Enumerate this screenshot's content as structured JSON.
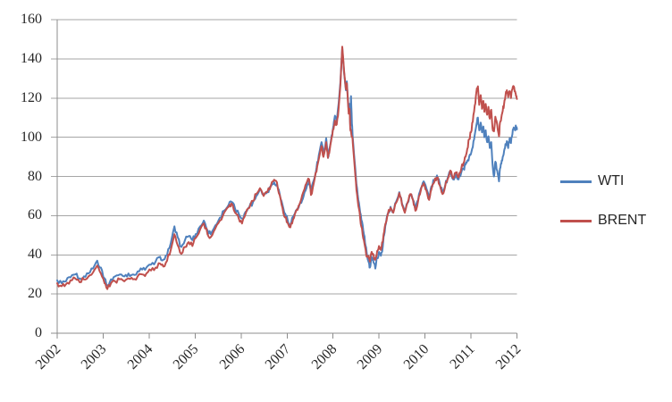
{
  "chart_data": {
    "type": "line",
    "title": "",
    "xlabel": "",
    "ylabel": "",
    "grid": true,
    "legend_position": "right",
    "colors": {
      "grid": "#a6a6a6",
      "axis": "#8c8c8c",
      "text": "#262626",
      "wti": "#4F81BD",
      "brent": "#C0504D"
    },
    "x_axis": {
      "ticks": [
        "2002",
        "2003",
        "2004",
        "2005",
        "2006",
        "2007",
        "2008",
        "2009",
        "2010",
        "2011",
        "2012"
      ],
      "range": [
        2002,
        2012
      ]
    },
    "y_axis": {
      "ticks": [
        "0",
        "20",
        "40",
        "60",
        "80",
        "100",
        "120",
        "140",
        "160"
      ],
      "tick_values": [
        0,
        20,
        40,
        60,
        80,
        100,
        120,
        140,
        160
      ],
      "range": [
        0,
        160
      ]
    },
    "series": [
      {
        "name": "WTI",
        "color": "#4F81BD"
      },
      {
        "name": "BRENT",
        "color": "#C0504D"
      }
    ],
    "points_format": [
      "year",
      "WTI",
      "BRENT"
    ],
    "points": [
      [
        2002.0,
        27,
        25.5
      ],
      [
        2002.1,
        25.5,
        24
      ],
      [
        2002.19,
        26.5,
        25
      ],
      [
        2002.29,
        28.5,
        27
      ],
      [
        2002.39,
        30,
        28
      ],
      [
        2002.49,
        28,
        26
      ],
      [
        2002.58,
        29,
        27.5
      ],
      [
        2002.68,
        30.5,
        29
      ],
      [
        2002.78,
        33,
        31
      ],
      [
        2002.87,
        37,
        34.5
      ],
      [
        2002.95,
        33.5,
        30.5
      ],
      [
        2003.03,
        28,
        25.5
      ],
      [
        2003.09,
        24.5,
        22.5
      ],
      [
        2003.17,
        27.5,
        25.5
      ],
      [
        2003.26,
        29,
        26.5
      ],
      [
        2003.36,
        30,
        27.5
      ],
      [
        2003.46,
        29,
        26.5
      ],
      [
        2003.55,
        30.5,
        28
      ],
      [
        2003.65,
        30,
        27.5
      ],
      [
        2003.75,
        31.5,
        29
      ],
      [
        2003.85,
        32.5,
        30
      ],
      [
        2003.94,
        33.5,
        30.5
      ],
      [
        2004.04,
        35,
        32
      ],
      [
        2004.14,
        36.5,
        33.5
      ],
      [
        2004.24,
        39,
        35.5
      ],
      [
        2004.31,
        37.5,
        34
      ],
      [
        2004.39,
        40,
        37
      ],
      [
        2004.47,
        46,
        42.5
      ],
      [
        2004.55,
        54.5,
        50.5
      ],
      [
        2004.62,
        49,
        45
      ],
      [
        2004.7,
        44,
        40.5
      ],
      [
        2004.78,
        47.5,
        44
      ],
      [
        2004.86,
        49.5,
        46.5
      ],
      [
        2004.94,
        47.5,
        44.5
      ],
      [
        2005.01,
        50.5,
        48.5
      ],
      [
        2005.11,
        54.5,
        53
      ],
      [
        2005.19,
        57.5,
        56
      ],
      [
        2005.27,
        52.5,
        50.5
      ],
      [
        2005.34,
        50.5,
        49
      ],
      [
        2005.44,
        55,
        53.5
      ],
      [
        2005.54,
        59,
        57.5
      ],
      [
        2005.63,
        62.5,
        61.5
      ],
      [
        2005.73,
        65.5,
        64.5
      ],
      [
        2005.79,
        67,
        66.2
      ],
      [
        2005.87,
        63.5,
        61.5
      ],
      [
        2005.95,
        61,
        58.5
      ],
      [
        2006.02,
        58.5,
        56
      ],
      [
        2006.1,
        62,
        61
      ],
      [
        2006.18,
        64.5,
        64
      ],
      [
        2006.26,
        67,
        67.5
      ],
      [
        2006.33,
        70,
        71
      ],
      [
        2006.41,
        73.5,
        74
      ],
      [
        2006.49,
        70.5,
        70
      ],
      [
        2006.57,
        72,
        72
      ],
      [
        2006.65,
        75,
        75.5
      ],
      [
        2006.72,
        77,
        78.3
      ],
      [
        2006.78,
        76,
        77
      ],
      [
        2006.84,
        71,
        70.5
      ],
      [
        2006.9,
        65.5,
        64
      ],
      [
        2006.96,
        61,
        59
      ],
      [
        2007.01,
        58,
        56.5
      ],
      [
        2007.07,
        55.5,
        54
      ],
      [
        2007.13,
        59.5,
        58
      ],
      [
        2007.19,
        62.5,
        62
      ],
      [
        2007.25,
        64,
        65
      ],
      [
        2007.31,
        66.5,
        68.5
      ],
      [
        2007.36,
        70,
        72.5
      ],
      [
        2007.42,
        74,
        76.5
      ],
      [
        2007.48,
        78,
        78.5
      ],
      [
        2007.52,
        72,
        70.5
      ],
      [
        2007.58,
        78,
        76.5
      ],
      [
        2007.64,
        84.5,
        82.5
      ],
      [
        2007.69,
        91,
        89
      ],
      [
        2007.75,
        97.5,
        95.5
      ],
      [
        2007.79,
        91.5,
        90
      ],
      [
        2007.85,
        99.5,
        97.5
      ],
      [
        2007.89,
        89.5,
        89.5
      ],
      [
        2007.93,
        95,
        94
      ],
      [
        2007.97,
        101,
        100
      ],
      [
        2008.01,
        106,
        104
      ],
      [
        2008.04,
        111,
        108.5
      ],
      [
        2008.08,
        108.5,
        106.5
      ],
      [
        2008.12,
        117,
        114.5
      ],
      [
        2008.16,
        128,
        126.5
      ],
      [
        2008.2,
        145.5,
        146.2
      ],
      [
        2008.24,
        133,
        134
      ],
      [
        2008.28,
        124,
        124.5
      ],
      [
        2008.3,
        128.5,
        127.5
      ],
      [
        2008.34,
        113.5,
        112
      ],
      [
        2008.36,
        117,
        114.5
      ],
      [
        2008.375,
        106,
        104
      ],
      [
        2008.39,
        121,
        103
      ],
      [
        2008.41,
        107,
        100.5
      ],
      [
        2008.43,
        99.5,
        97
      ],
      [
        2008.47,
        87.5,
        85
      ],
      [
        2008.51,
        76,
        73
      ],
      [
        2008.55,
        68,
        65
      ],
      [
        2008.59,
        61.5,
        58.5
      ],
      [
        2008.63,
        57,
        53.5
      ],
      [
        2008.67,
        50.5,
        47.5
      ],
      [
        2008.71,
        44.5,
        42.5
      ],
      [
        2008.74,
        39.5,
        39
      ],
      [
        2008.78,
        36,
        38
      ],
      [
        2008.8,
        33.5,
        36.5
      ],
      [
        2008.84,
        39,
        41.5
      ],
      [
        2008.88,
        36,
        40
      ],
      [
        2008.92,
        33,
        37.5
      ],
      [
        2008.96,
        38.5,
        42
      ],
      [
        2009.0,
        41.5,
        44.5
      ],
      [
        2009.04,
        39.5,
        42.5
      ],
      [
        2009.08,
        44,
        46.5
      ],
      [
        2009.11,
        50,
        51.5
      ],
      [
        2009.15,
        56,
        56.5
      ],
      [
        2009.19,
        61,
        60.5
      ],
      [
        2009.25,
        64.5,
        64
      ],
      [
        2009.31,
        62,
        61.5
      ],
      [
        2009.37,
        67,
        66.5
      ],
      [
        2009.44,
        72,
        71.5
      ],
      [
        2009.5,
        66,
        65.5
      ],
      [
        2009.56,
        62,
        61.5
      ],
      [
        2009.62,
        66.5,
        66.5
      ],
      [
        2009.68,
        70.5,
        71
      ],
      [
        2009.74,
        68,
        68
      ],
      [
        2009.79,
        63,
        62.5
      ],
      [
        2009.85,
        68,
        67.5
      ],
      [
        2009.91,
        74,
        73
      ],
      [
        2009.97,
        77.5,
        76.5
      ],
      [
        2010.03,
        74,
        73
      ],
      [
        2010.09,
        69.5,
        68
      ],
      [
        2010.14,
        75,
        73.5
      ],
      [
        2010.2,
        78,
        77
      ],
      [
        2010.26,
        80.5,
        79.5
      ],
      [
        2010.32,
        76.5,
        75.5
      ],
      [
        2010.38,
        72,
        71
      ],
      [
        2010.44,
        75.5,
        75
      ],
      [
        2010.49,
        79,
        78.5
      ],
      [
        2010.55,
        82.5,
        83
      ],
      [
        2010.61,
        78.5,
        79
      ],
      [
        2010.67,
        81,
        82
      ],
      [
        2010.73,
        78.5,
        79.5
      ],
      [
        2010.79,
        82,
        84
      ],
      [
        2010.84,
        84,
        87
      ],
      [
        2010.88,
        86,
        90
      ],
      [
        2010.92,
        88,
        94
      ],
      [
        2010.96,
        90,
        99
      ],
      [
        2011.0,
        91.5,
        102.5
      ],
      [
        2011.04,
        95,
        108
      ],
      [
        2011.08,
        101,
        116
      ],
      [
        2011.12,
        106.5,
        123.5
      ],
      [
        2011.15,
        110,
        126
      ],
      [
        2011.18,
        103.5,
        116.5
      ],
      [
        2011.21,
        107.5,
        121.5
      ],
      [
        2011.24,
        102.5,
        114.5
      ],
      [
        2011.27,
        105.5,
        118.5
      ],
      [
        2011.29,
        100,
        113
      ],
      [
        2011.32,
        103.5,
        117
      ],
      [
        2011.35,
        97.5,
        111.5
      ],
      [
        2011.38,
        100.5,
        115.5
      ],
      [
        2011.41,
        94.5,
        109.5
      ],
      [
        2011.44,
        97.5,
        114
      ],
      [
        2011.47,
        86,
        104.5
      ],
      [
        2011.5,
        80,
        103
      ],
      [
        2011.53,
        87.5,
        110.5
      ],
      [
        2011.57,
        83,
        106.5
      ],
      [
        2011.61,
        77.5,
        100.5
      ],
      [
        2011.63,
        84,
        107.5
      ],
      [
        2011.66,
        86.5,
        110
      ],
      [
        2011.69,
        90,
        113.5
      ],
      [
        2011.72,
        93,
        117
      ],
      [
        2011.75,
        96.5,
        121
      ],
      [
        2011.78,
        98,
        124
      ],
      [
        2011.81,
        94.5,
        120.5
      ],
      [
        2011.84,
        99.5,
        123.5
      ],
      [
        2011.87,
        97,
        120
      ],
      [
        2011.9,
        101.5,
        124.5
      ],
      [
        2011.93,
        105,
        126
      ],
      [
        2011.96,
        103.5,
        123.5
      ],
      [
        2011.98,
        105.5,
        121
      ],
      [
        2012.0,
        104,
        119.5
      ]
    ]
  }
}
